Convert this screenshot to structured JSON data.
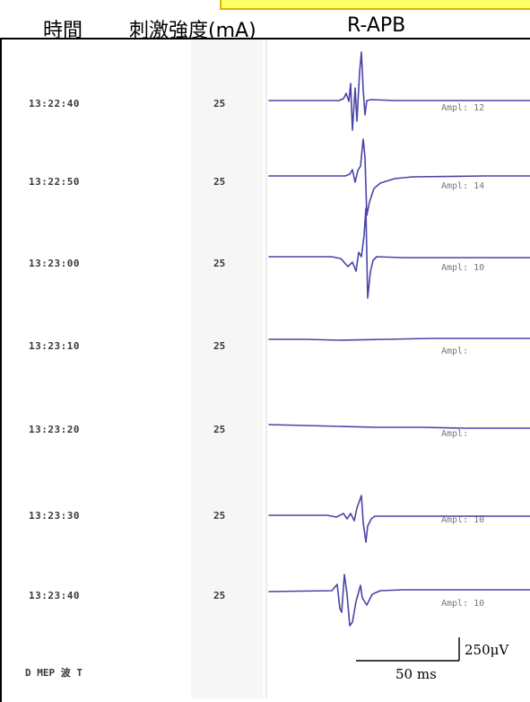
{
  "header": {
    "time_label": "時間",
    "stim_label": "刺激強度(mA)",
    "channel_label": "R-APB"
  },
  "rows": [
    {
      "time": "13:22:40",
      "stim": "25",
      "amp": "Ampl: 12"
    },
    {
      "time": "13:22:50",
      "stim": "25",
      "amp": "Ampl: 14"
    },
    {
      "time": "13:23:00",
      "stim": "25",
      "amp": "Ampl: 10"
    },
    {
      "time": "13:23:10",
      "stim": "25",
      "amp": "Ampl:"
    },
    {
      "time": "13:23:20",
      "stim": "25",
      "amp": "Ampl:"
    },
    {
      "time": "13:23:30",
      "stim": "25",
      "amp": "Ampl: 10"
    },
    {
      "time": "13:23:40",
      "stim": "25",
      "amp": "Ampl: 10"
    }
  ],
  "footer": {
    "label": "D MEP 波 T"
  },
  "scale": {
    "amplitude_label": "250μV",
    "time_label": "50 ms"
  },
  "colors": {
    "trace": "#4a44a8",
    "header_highlight": "#ffff66",
    "header_highlight_border": "#e0b400"
  }
}
